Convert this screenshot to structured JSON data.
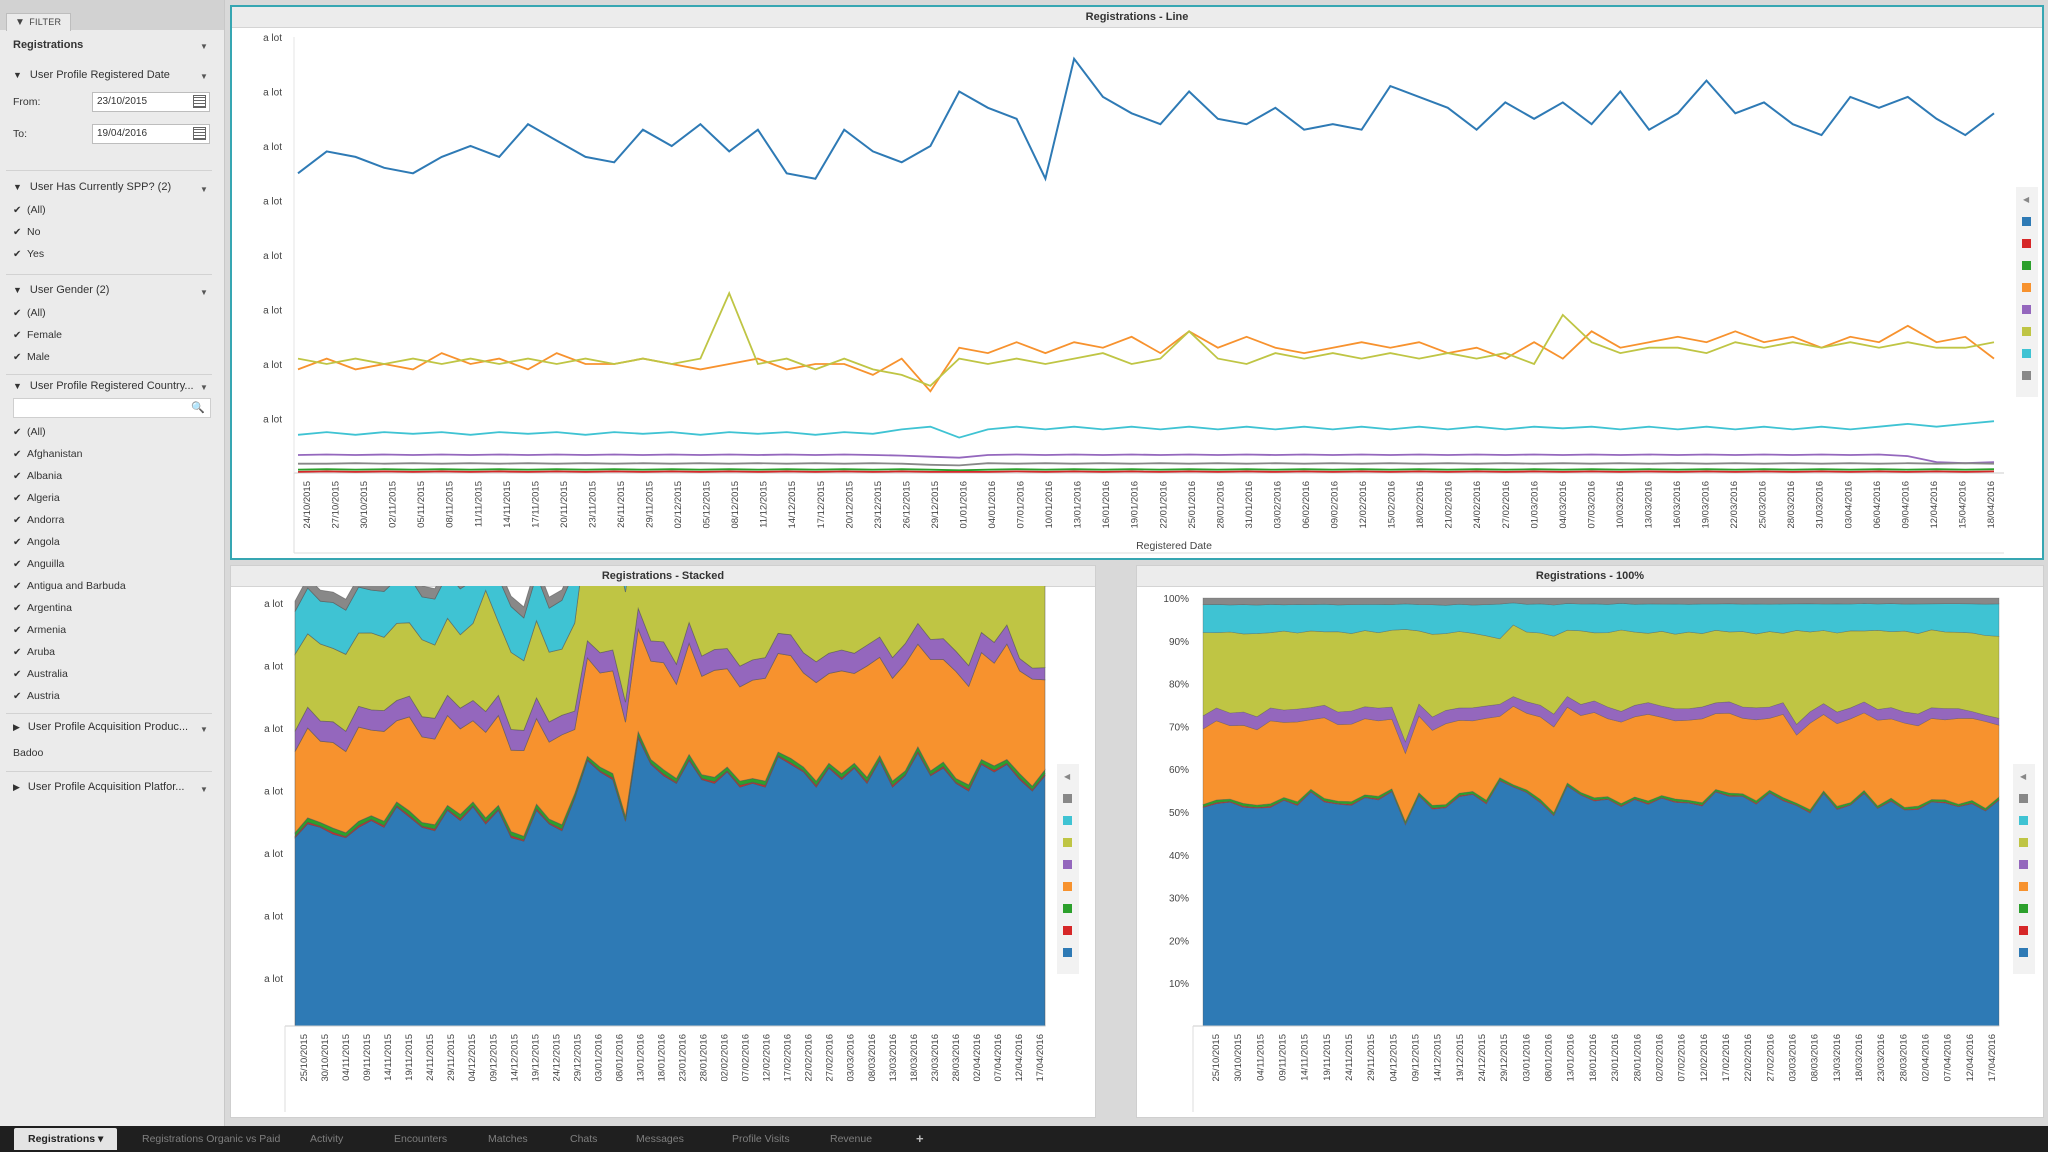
{
  "sidebar": {
    "filter_tab": "FILTER",
    "section": "Registrations",
    "date_group": {
      "title": "User Profile Registered Date",
      "from_label": "From:",
      "from_value": "23/10/2015",
      "to_label": "To:",
      "to_value": "19/04/2016"
    },
    "spp_group": {
      "title": "User Has Currently SPP? (2)",
      "items": [
        "(All)",
        "No",
        "Yes"
      ]
    },
    "gender_group": {
      "title": "User Gender (2)",
      "items": [
        "(All)",
        "Female",
        "Male"
      ]
    },
    "country_group": {
      "title": "User Profile Registered Country...",
      "search_placeholder": "",
      "items": [
        "(All)",
        "Afghanistan",
        "Albania",
        "Algeria",
        "Andorra",
        "Angola",
        "Anguilla",
        "Antigua and Barbuda",
        "Argentina",
        "Armenia",
        "Aruba",
        "Australia",
        "Austria"
      ]
    },
    "product_group": {
      "title": "User Profile Acquisition Produc...",
      "value": "Badoo"
    },
    "platform_group": {
      "title": "User Profile Acquisition Platfor..."
    }
  },
  "colors": {
    "blue": "#2e7ab5",
    "red": "#d62728",
    "green": "#2ca02c",
    "orange": "#f7922e",
    "purple": "#9467bd",
    "olive": "#bfc544",
    "cyan": "#3fc3d3",
    "gray": "#888888",
    "accent": "#36a6b2"
  },
  "charts": {
    "line": {
      "title": "Registrations - Line",
      "xlabel": "Registered Date"
    },
    "stacked": {
      "title": "Registrations - Stacked",
      "xlabel": "Registered Date"
    },
    "pct": {
      "title": "Registrations - 100%",
      "xlabel": "Registered Date"
    }
  },
  "chart_data": [
    {
      "type": "line",
      "title": "Registrations - Line",
      "xlabel": "Registered Date",
      "ylabel": "",
      "y_tick_labels": [
        "a lot",
        "a lot",
        "a lot",
        "a lot",
        "a lot",
        "a lot",
        "a lot",
        "a lot"
      ],
      "x_tick_labels": [
        "24/10/2015",
        "27/10/2015",
        "30/10/2015",
        "02/11/2015",
        "05/11/2015",
        "08/11/2015",
        "11/11/2015",
        "14/11/2015",
        "17/11/2015",
        "20/11/2015",
        "23/11/2015",
        "26/11/2015",
        "29/11/2015",
        "02/12/2015",
        "05/12/2015",
        "08/12/2015",
        "11/12/2015",
        "14/12/2015",
        "17/12/2015",
        "20/12/2015",
        "23/12/2015",
        "26/12/2015",
        "29/12/2015",
        "01/01/2016",
        "04/01/2016",
        "07/01/2016",
        "10/01/2016",
        "13/01/2016",
        "16/01/2016",
        "19/01/2016",
        "22/01/2016",
        "25/01/2016",
        "28/01/2016",
        "31/01/2016",
        "03/02/2016",
        "06/02/2016",
        "09/02/2016",
        "12/02/2016",
        "15/02/2016",
        "18/02/2016",
        "21/02/2016",
        "24/02/2016",
        "27/02/2016",
        "01/03/2016",
        "04/03/2016",
        "07/03/2016",
        "10/03/2016",
        "13/03/2016",
        "16/03/2016",
        "19/03/2016",
        "22/03/2016",
        "25/03/2016",
        "28/03/2016",
        "31/03/2016",
        "03/04/2016",
        "06/04/2016",
        "09/04/2016",
        "12/04/2016",
        "15/04/2016",
        "18/04/2016"
      ],
      "ylim": [
        0,
        8
      ],
      "grid": false,
      "legend": "right",
      "series": [
        {
          "color": "#2e7ab5",
          "values": [
            5.5,
            5.9,
            5.8,
            5.6,
            5.5,
            5.8,
            6.0,
            5.8,
            6.4,
            6.1,
            5.8,
            5.7,
            6.3,
            6.0,
            6.4,
            5.9,
            6.3,
            5.5,
            5.4,
            6.3,
            5.9,
            5.7,
            6.0,
            7.0,
            6.7,
            6.5,
            5.4,
            7.6,
            6.9,
            6.6,
            6.4,
            7.0,
            6.5,
            6.4,
            6.7,
            6.3,
            6.4,
            6.3,
            7.1,
            6.9,
            6.7,
            6.3,
            6.8,
            6.5,
            6.8,
            6.4,
            7.0,
            6.3,
            6.6,
            7.2,
            6.6,
            6.8,
            6.4,
            6.2,
            6.9,
            6.7,
            6.9,
            6.5,
            6.2,
            6.6
          ]
        },
        {
          "color": "#f7922e",
          "values": [
            1.9,
            2.1,
            1.9,
            2.0,
            1.9,
            2.2,
            2.0,
            2.1,
            1.9,
            2.2,
            2.0,
            2.0,
            2.1,
            2.0,
            1.9,
            2.0,
            2.1,
            1.9,
            2.0,
            2.0,
            1.8,
            2.1,
            1.5,
            2.3,
            2.2,
            2.4,
            2.2,
            2.4,
            2.3,
            2.5,
            2.2,
            2.6,
            2.3,
            2.5,
            2.3,
            2.2,
            2.3,
            2.4,
            2.3,
            2.4,
            2.2,
            2.3,
            2.1,
            2.4,
            2.1,
            2.6,
            2.3,
            2.4,
            2.5,
            2.4,
            2.6,
            2.4,
            2.5,
            2.3,
            2.5,
            2.4,
            2.7,
            2.4,
            2.5,
            2.1
          ]
        },
        {
          "color": "#bfc544",
          "values": [
            2.1,
            2.0,
            2.1,
            2.0,
            2.1,
            2.0,
            2.1,
            2.0,
            2.1,
            2.0,
            2.1,
            2.0,
            2.1,
            2.0,
            2.1,
            3.3,
            2.0,
            2.1,
            1.9,
            2.1,
            1.9,
            1.8,
            1.6,
            2.1,
            2.0,
            2.1,
            2.0,
            2.1,
            2.2,
            2.0,
            2.1,
            2.6,
            2.1,
            2.0,
            2.2,
            2.1,
            2.2,
            2.1,
            2.2,
            2.1,
            2.2,
            2.1,
            2.2,
            2.0,
            2.9,
            2.4,
            2.2,
            2.3,
            2.3,
            2.2,
            2.4,
            2.3,
            2.4,
            2.3,
            2.4,
            2.3,
            2.4,
            2.3,
            2.3,
            2.4
          ]
        },
        {
          "color": "#3fc3d3",
          "values": [
            0.7,
            0.75,
            0.7,
            0.75,
            0.72,
            0.75,
            0.7,
            0.75,
            0.72,
            0.75,
            0.7,
            0.75,
            0.72,
            0.75,
            0.7,
            0.75,
            0.72,
            0.75,
            0.7,
            0.75,
            0.72,
            0.8,
            0.85,
            0.65,
            0.8,
            0.85,
            0.8,
            0.85,
            0.8,
            0.85,
            0.8,
            0.85,
            0.8,
            0.85,
            0.8,
            0.85,
            0.8,
            0.85,
            0.8,
            0.85,
            0.8,
            0.85,
            0.8,
            0.85,
            0.82,
            0.85,
            0.8,
            0.85,
            0.8,
            0.85,
            0.8,
            0.85,
            0.8,
            0.85,
            0.8,
            0.85,
            0.9,
            0.85,
            0.9,
            0.95
          ]
        },
        {
          "color": "#9467bd",
          "values": [
            0.33,
            0.34,
            0.33,
            0.34,
            0.33,
            0.34,
            0.33,
            0.34,
            0.33,
            0.34,
            0.33,
            0.34,
            0.33,
            0.34,
            0.33,
            0.34,
            0.33,
            0.34,
            0.33,
            0.34,
            0.33,
            0.32,
            0.3,
            0.28,
            0.33,
            0.34,
            0.33,
            0.34,
            0.33,
            0.34,
            0.33,
            0.34,
            0.33,
            0.34,
            0.33,
            0.34,
            0.33,
            0.34,
            0.33,
            0.34,
            0.33,
            0.34,
            0.33,
            0.34,
            0.33,
            0.34,
            0.33,
            0.34,
            0.33,
            0.34,
            0.33,
            0.34,
            0.33,
            0.34,
            0.33,
            0.34,
            0.31,
            0.2,
            0.18,
            0.2
          ]
        },
        {
          "color": "#888888",
          "values": [
            0.17,
            0.17,
            0.18,
            0.17,
            0.18,
            0.17,
            0.18,
            0.17,
            0.18,
            0.17,
            0.18,
            0.17,
            0.18,
            0.17,
            0.18,
            0.17,
            0.18,
            0.17,
            0.18,
            0.17,
            0.18,
            0.17,
            0.15,
            0.14,
            0.18,
            0.17,
            0.18,
            0.17,
            0.18,
            0.17,
            0.18,
            0.17,
            0.18,
            0.17,
            0.18,
            0.17,
            0.18,
            0.17,
            0.18,
            0.17,
            0.18,
            0.17,
            0.18,
            0.17,
            0.18,
            0.17,
            0.18,
            0.17,
            0.18,
            0.17,
            0.18,
            0.17,
            0.18,
            0.17,
            0.18,
            0.17,
            0.18,
            0.17,
            0.18,
            0.17
          ]
        },
        {
          "color": "#2ca02c",
          "values": [
            0.06,
            0.07,
            0.06,
            0.07,
            0.06,
            0.07,
            0.06,
            0.07,
            0.06,
            0.07,
            0.06,
            0.07,
            0.06,
            0.07,
            0.06,
            0.07,
            0.06,
            0.07,
            0.06,
            0.07,
            0.06,
            0.07,
            0.06,
            0.05,
            0.06,
            0.07,
            0.06,
            0.07,
            0.06,
            0.07,
            0.06,
            0.07,
            0.06,
            0.07,
            0.06,
            0.07,
            0.06,
            0.07,
            0.06,
            0.07,
            0.06,
            0.07,
            0.06,
            0.07,
            0.06,
            0.07,
            0.06,
            0.07,
            0.06,
            0.07,
            0.06,
            0.07,
            0.06,
            0.07,
            0.06,
            0.07,
            0.06,
            0.07,
            0.06,
            0.07
          ]
        },
        {
          "color": "#d62728",
          "values": [
            0.02,
            0.03,
            0.02,
            0.03,
            0.02,
            0.03,
            0.02,
            0.03,
            0.02,
            0.03,
            0.02,
            0.03,
            0.02,
            0.03,
            0.02,
            0.03,
            0.02,
            0.03,
            0.02,
            0.03,
            0.02,
            0.03,
            0.02,
            0.02,
            0.02,
            0.03,
            0.02,
            0.03,
            0.02,
            0.03,
            0.02,
            0.03,
            0.02,
            0.03,
            0.02,
            0.03,
            0.02,
            0.03,
            0.02,
            0.03,
            0.02,
            0.03,
            0.02,
            0.03,
            0.02,
            0.03,
            0.02,
            0.03,
            0.02,
            0.03,
            0.02,
            0.03,
            0.02,
            0.03,
            0.02,
            0.03,
            0.02,
            0.03,
            0.02,
            0.03
          ]
        }
      ]
    },
    {
      "type": "area",
      "stacked": true,
      "title": "Registrations - Stacked",
      "xlabel": "Registered Date",
      "y_tick_labels": [
        "a lot",
        "a lot",
        "a lot",
        "a lot",
        "a lot",
        "a lot",
        "a lot"
      ],
      "x_tick_labels": [
        "25/10/2015",
        "30/10/2015",
        "04/11/2015",
        "09/11/2015",
        "14/11/2015",
        "19/11/2015",
        "24/11/2015",
        "29/11/2015",
        "04/12/2015",
        "09/12/2015",
        "14/12/2015",
        "19/12/2015",
        "24/12/2015",
        "29/12/2015",
        "03/01/2016",
        "08/01/2016",
        "13/01/2016",
        "18/01/2016",
        "23/01/2016",
        "28/01/2016",
        "02/02/2016",
        "07/02/2016",
        "12/02/2016",
        "17/02/2016",
        "22/02/2016",
        "27/02/2016",
        "03/03/2016",
        "08/03/2016",
        "13/03/2016",
        "18/03/2016",
        "23/03/2016",
        "28/03/2016",
        "02/04/2016",
        "07/04/2016",
        "12/04/2016",
        "17/04/2016"
      ],
      "ylim": [
        0,
        7
      ],
      "legend": "right",
      "series_colors": [
        "#2e7ab5",
        "#d62728",
        "#2ca02c",
        "#f7922e",
        "#9467bd",
        "#bfc544",
        "#3fc3d3",
        "#888888"
      ],
      "note_values": "stacked from the same series as the line chart (blue at bottom)"
    },
    {
      "type": "area",
      "stacked": "percent",
      "title": "Registrations - 100%",
      "xlabel": "Registered Date",
      "y_tick_labels": [
        "10%",
        "20%",
        "30%",
        "40%",
        "50%",
        "60%",
        "70%",
        "80%",
        "90%",
        "100%"
      ],
      "x_tick_labels": [
        "25/10/2015",
        "30/10/2015",
        "04/11/2015",
        "09/11/2015",
        "14/11/2015",
        "19/11/2015",
        "24/11/2015",
        "29/11/2015",
        "04/12/2015",
        "09/12/2015",
        "14/12/2015",
        "19/12/2015",
        "24/12/2015",
        "29/12/2015",
        "03/01/2016",
        "08/01/2016",
        "13/01/2016",
        "18/01/2016",
        "23/01/2016",
        "28/01/2016",
        "02/02/2016",
        "07/02/2016",
        "12/02/2016",
        "17/02/2016",
        "22/02/2016",
        "27/02/2016",
        "03/03/2016",
        "08/03/2016",
        "13/03/2016",
        "18/03/2016",
        "23/03/2016",
        "28/03/2016",
        "02/04/2016",
        "07/04/2016",
        "12/04/2016",
        "17/04/2016"
      ],
      "ylim": [
        0,
        100
      ],
      "legend": "right"
    }
  ],
  "tabs": [
    "Registrations",
    "Registrations Organic vs Paid",
    "Activity",
    "Encounters",
    "Matches",
    "Chats",
    "Messages",
    "Profile Visits",
    "Revenue",
    "+"
  ]
}
